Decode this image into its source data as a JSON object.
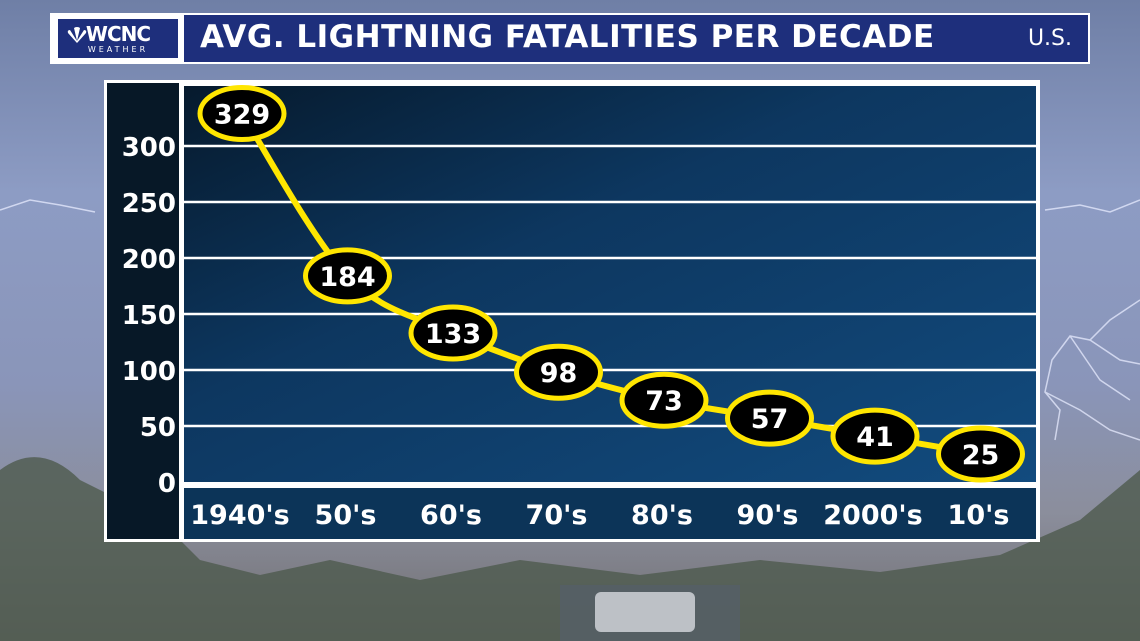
{
  "header": {
    "logo_text": "WCNC",
    "logo_subtext": "WEATHER",
    "region": "U.S."
  },
  "colors": {
    "title_bar": "#1e2f7c",
    "plot_bg": "#0f3a66",
    "line": "#ffe600",
    "marker_fill": "#000000",
    "marker_stroke": "#ffe600"
  },
  "chart_data": {
    "type": "line",
    "title": "AVG. LIGHTNING FATALITIES PER DECADE",
    "categories": [
      "1940's",
      "50's",
      "60's",
      "70's",
      "80's",
      "90's",
      "2000's",
      "10's"
    ],
    "values": [
      329,
      184,
      133,
      98,
      73,
      57,
      41,
      25
    ],
    "yticks": [
      0,
      50,
      100,
      150,
      200,
      250,
      300
    ],
    "ylim": [
      0,
      340
    ],
    "grid": true,
    "data_labels": true,
    "legend": "none",
    "xlabel": "",
    "ylabel": ""
  }
}
